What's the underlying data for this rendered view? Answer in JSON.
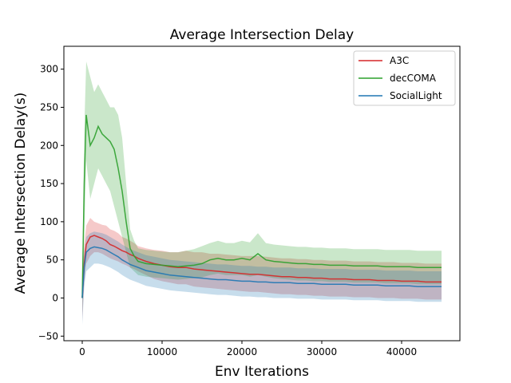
{
  "chart_data": {
    "type": "line",
    "title": "Average Intersection Delay",
    "xlabel": "Env Iterations",
    "ylabel": "Average Intersection Delay(s)",
    "xlim": [
      -2300,
      47300
    ],
    "ylim": [
      -56,
      330
    ],
    "xticks": [
      0,
      10000,
      20000,
      30000,
      40000
    ],
    "xtick_labels": [
      "0",
      "10000",
      "20000",
      "30000",
      "40000"
    ],
    "yticks": [
      -50,
      0,
      50,
      100,
      150,
      200,
      250,
      300
    ],
    "ytick_labels": [
      "−50",
      "0",
      "50",
      "100",
      "150",
      "200",
      "250",
      "300"
    ],
    "grid": false,
    "legend_position": "top-right",
    "x": [
      0,
      250,
      500,
      1000,
      1500,
      2000,
      2500,
      3000,
      3500,
      4000,
      4500,
      5000,
      5500,
      6000,
      6500,
      7000,
      8000,
      9000,
      10000,
      11000,
      12000,
      13000,
      14000,
      15000,
      16000,
      17000,
      18000,
      19000,
      20000,
      21000,
      22000,
      23000,
      24000,
      25000,
      26000,
      27000,
      28000,
      29000,
      30000,
      31000,
      32000,
      33000,
      34000,
      35000,
      36000,
      37000,
      38000,
      39000,
      40000,
      41000,
      42000,
      43000,
      44000,
      45000
    ],
    "series": [
      {
        "name": "A3C",
        "color": "#d62728",
        "values": [
          0,
          45,
          70,
          80,
          82,
          80,
          78,
          75,
          70,
          68,
          65,
          62,
          60,
          57,
          55,
          52,
          48,
          45,
          43,
          41,
          40,
          40,
          38,
          37,
          36,
          35,
          34,
          33,
          32,
          31,
          31,
          30,
          29,
          28,
          28,
          27,
          27,
          26,
          26,
          25,
          25,
          25,
          24,
          24,
          24,
          23,
          23,
          23,
          22,
          22,
          22,
          21,
          21,
          21
        ],
        "lower": [
          -30,
          20,
          45,
          55,
          60,
          60,
          58,
          55,
          52,
          50,
          48,
          45,
          43,
          40,
          38,
          35,
          30,
          25,
          22,
          20,
          18,
          18,
          15,
          14,
          13,
          12,
          11,
          10,
          9,
          8,
          8,
          7,
          6,
          5,
          5,
          4,
          4,
          3,
          3,
          2,
          2,
          2,
          1,
          1,
          1,
          0,
          0,
          0,
          -1,
          -1,
          -1,
          -2,
          -2,
          -2
        ],
        "upper": [
          30,
          70,
          95,
          105,
          100,
          98,
          96,
          95,
          90,
          88,
          85,
          80,
          78,
          75,
          72,
          68,
          65,
          63,
          62,
          60,
          60,
          62,
          60,
          60,
          58,
          58,
          57,
          56,
          55,
          55,
          55,
          54,
          53,
          52,
          52,
          51,
          51,
          50,
          50,
          49,
          49,
          49,
          48,
          48,
          48,
          47,
          47,
          47,
          46,
          46,
          46,
          45,
          45,
          45
        ]
      },
      {
        "name": "decCOMA",
        "color": "#2ca02c",
        "values": [
          0,
          150,
          240,
          200,
          210,
          225,
          215,
          210,
          205,
          195,
          170,
          140,
          100,
          65,
          55,
          48,
          45,
          44,
          43,
          42,
          41,
          42,
          43,
          45,
          50,
          52,
          50,
          50,
          52,
          50,
          58,
          50,
          48,
          47,
          46,
          45,
          45,
          44,
          44,
          43,
          43,
          43,
          42,
          42,
          42,
          42,
          41,
          41,
          41,
          41,
          40,
          40,
          40,
          40
        ],
        "lower": [
          -20,
          80,
          180,
          130,
          150,
          170,
          160,
          150,
          140,
          120,
          100,
          80,
          60,
          40,
          35,
          30,
          28,
          27,
          26,
          25,
          24,
          25,
          26,
          27,
          30,
          32,
          30,
          30,
          30,
          28,
          30,
          28,
          26,
          25,
          24,
          23,
          23,
          22,
          22,
          21,
          21,
          21,
          20,
          20,
          20,
          20,
          19,
          19,
          19,
          19,
          18,
          18,
          18,
          18
        ],
        "upper": [
          20,
          220,
          310,
          290,
          270,
          280,
          270,
          260,
          250,
          250,
          240,
          210,
          150,
          90,
          75,
          65,
          63,
          62,
          61,
          60,
          60,
          62,
          64,
          68,
          72,
          75,
          72,
          72,
          75,
          73,
          85,
          72,
          70,
          69,
          68,
          67,
          67,
          66,
          66,
          65,
          65,
          65,
          64,
          64,
          64,
          64,
          63,
          63,
          63,
          63,
          62,
          62,
          62,
          62
        ]
      },
      {
        "name": "SocialLight",
        "color": "#1f77b4",
        "values": [
          0,
          40,
          60,
          65,
          67,
          66,
          65,
          63,
          60,
          57,
          54,
          50,
          47,
          44,
          42,
          40,
          36,
          34,
          32,
          30,
          29,
          28,
          27,
          26,
          25,
          24,
          24,
          23,
          22,
          22,
          21,
          21,
          20,
          20,
          20,
          19,
          19,
          19,
          18,
          18,
          18,
          18,
          17,
          17,
          17,
          17,
          16,
          16,
          16,
          16,
          15,
          15,
          15,
          15
        ],
        "lower": [
          -35,
          15,
          35,
          40,
          45,
          45,
          44,
          42,
          40,
          37,
          34,
          30,
          27,
          24,
          22,
          20,
          16,
          14,
          12,
          10,
          9,
          8,
          7,
          6,
          5,
          4,
          4,
          3,
          2,
          2,
          1,
          1,
          0,
          0,
          0,
          -1,
          -1,
          -1,
          -2,
          -2,
          -2,
          -2,
          -3,
          -3,
          -3,
          -3,
          -4,
          -4,
          -4,
          -4,
          -5,
          -5,
          -5,
          -5
        ],
        "upper": [
          30,
          60,
          80,
          85,
          87,
          86,
          85,
          83,
          80,
          77,
          74,
          70,
          67,
          64,
          62,
          60,
          56,
          54,
          52,
          50,
          49,
          48,
          47,
          46,
          45,
          44,
          44,
          43,
          42,
          42,
          41,
          41,
          40,
          40,
          40,
          39,
          39,
          39,
          38,
          38,
          38,
          38,
          37,
          37,
          37,
          37,
          36,
          36,
          36,
          36,
          35,
          35,
          35,
          35
        ]
      }
    ]
  }
}
